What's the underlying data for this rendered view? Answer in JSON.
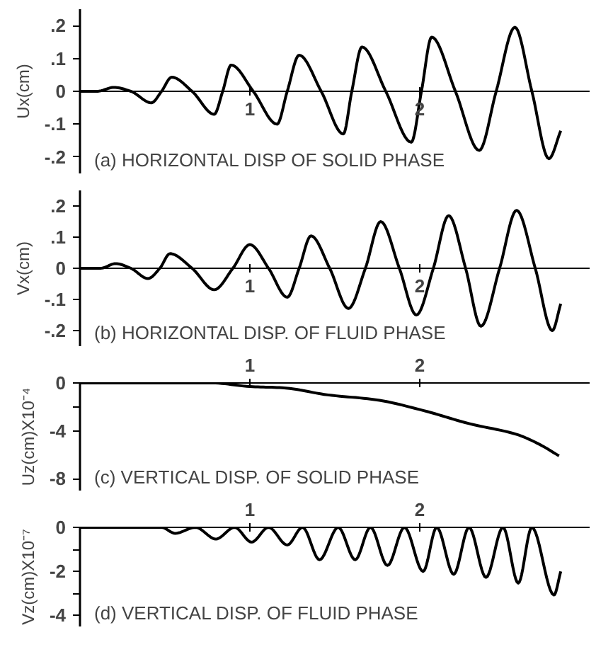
{
  "chart_data": [
    {
      "type": "line",
      "ylabel": "Ux(cm)",
      "annotations": [
        "(a) HORIZONTAL DISP OF SOLID PHASE"
      ],
      "xlim": [
        0,
        3.0
      ],
      "xticks": [
        1,
        2
      ],
      "ylim": [
        -0.25,
        0.25
      ],
      "yticks": [
        {
          "value": 0.2,
          "label": ".2"
        },
        {
          "value": 0.1,
          "label": ".1"
        },
        0,
        {
          "value": -0.1,
          "label": "-.1"
        },
        {
          "value": -0.2,
          "label": "-.2"
        }
      ],
      "series": [
        {
          "color": "#000000",
          "x": [
            0,
            0.1,
            0.2,
            0.3,
            0.42,
            0.48,
            0.54,
            0.66,
            0.79,
            0.84,
            0.89,
            1.02,
            1.16,
            1.22,
            1.29,
            1.42,
            1.55,
            1.6,
            1.66,
            1.8,
            1.95,
            2.01,
            2.07,
            2.21,
            2.35,
            2.45,
            2.56,
            2.66,
            2.76,
            2.83
          ],
          "values": [
            0,
            0,
            0.012,
            0,
            -0.035,
            0,
            0.043,
            0,
            -0.07,
            0,
            0.08,
            0,
            -0.1,
            0,
            0.11,
            0,
            -0.13,
            0,
            0.135,
            0,
            -0.155,
            0,
            0.165,
            0,
            -0.18,
            0,
            0.195,
            0,
            -0.205,
            -0.12
          ]
        }
      ]
    },
    {
      "type": "line",
      "ylabel": "Vx(cm)",
      "annotations": [
        "(b) HORIZONTAL DISP. OF FLUID PHASE"
      ],
      "xlim": [
        0,
        3.0
      ],
      "xticks": [
        1,
        2
      ],
      "ylim": [
        -0.25,
        0.25
      ],
      "yticks": [
        {
          "value": 0.2,
          "label": ".2"
        },
        {
          "value": 0.1,
          "label": ".1"
        },
        0,
        {
          "value": -0.1,
          "label": "-.1"
        },
        {
          "value": -0.2,
          "label": "-.2"
        }
      ],
      "series": [
        {
          "color": "#000000",
          "x": [
            0,
            0.12,
            0.21,
            0.3,
            0.4,
            0.47,
            0.53,
            0.66,
            0.79,
            0.9,
            1.0,
            1.11,
            1.22,
            1.29,
            1.36,
            1.47,
            1.58,
            1.68,
            1.77,
            1.88,
            1.98,
            2.08,
            2.17,
            2.27,
            2.36,
            2.47,
            2.57,
            2.68,
            2.78,
            2.83
          ],
          "values": [
            0,
            0,
            0.015,
            0,
            -0.033,
            0,
            0.047,
            0,
            -0.069,
            0,
            0.076,
            0,
            -0.093,
            0,
            0.104,
            0,
            -0.129,
            0,
            0.15,
            0,
            -0.15,
            0,
            0.169,
            0,
            -0.186,
            0,
            0.186,
            0,
            -0.2,
            -0.114
          ]
        }
      ]
    },
    {
      "type": "line",
      "ylabel": "Uz(cm)X10⁻⁴",
      "annotations": [
        "(c) VERTICAL DISP. OF SOLID PHASE"
      ],
      "xlim": [
        0,
        3.0
      ],
      "xticks": [
        1,
        2
      ],
      "ylim": [
        -9,
        0
      ],
      "yticks": [
        0,
        {
          "value": -2,
          "label": null
        },
        -4,
        -8
      ],
      "series": [
        {
          "color": "#000000",
          "x": [
            0,
            0.4,
            0.78,
            1.0,
            1.19,
            1.46,
            1.74,
            2.02,
            2.29,
            2.57,
            2.7,
            2.82
          ],
          "values": [
            0,
            0,
            0,
            -0.3,
            -0.4,
            -1.0,
            -1.4,
            -2.3,
            -3.4,
            -4.3,
            -5.1,
            -6.1
          ]
        }
      ]
    },
    {
      "type": "line",
      "ylabel": "Vz(cm)X10⁻⁷",
      "annotations": [
        "(d) VERTICAL DISP. OF FLUID PHASE"
      ],
      "xlim": [
        0,
        3.0
      ],
      "xticks": [
        1,
        2
      ],
      "ylim": [
        -4.5,
        0
      ],
      "yticks": [
        0,
        {
          "value": -1,
          "label": null
        },
        -2,
        {
          "value": -3,
          "label": null
        },
        -4
      ],
      "series": [
        {
          "color": "#000000",
          "x": [
            0,
            0.4,
            0.48,
            0.56,
            0.68,
            0.8,
            0.91,
            1.01,
            1.11,
            1.22,
            1.31,
            1.41,
            1.52,
            1.62,
            1.71,
            1.81,
            1.91,
            2.02,
            2.1,
            2.2,
            2.29,
            2.39,
            2.49,
            2.58,
            2.66,
            2.79,
            2.83
          ],
          "values": [
            0,
            0,
            0,
            -0.27,
            0,
            -0.53,
            0,
            -0.67,
            0,
            -0.8,
            0,
            -1.47,
            0,
            -1.47,
            0,
            -1.73,
            0,
            -2.0,
            0,
            -2.13,
            0,
            -2.27,
            0,
            -2.53,
            0,
            -3.07,
            -2.0
          ]
        }
      ]
    }
  ]
}
